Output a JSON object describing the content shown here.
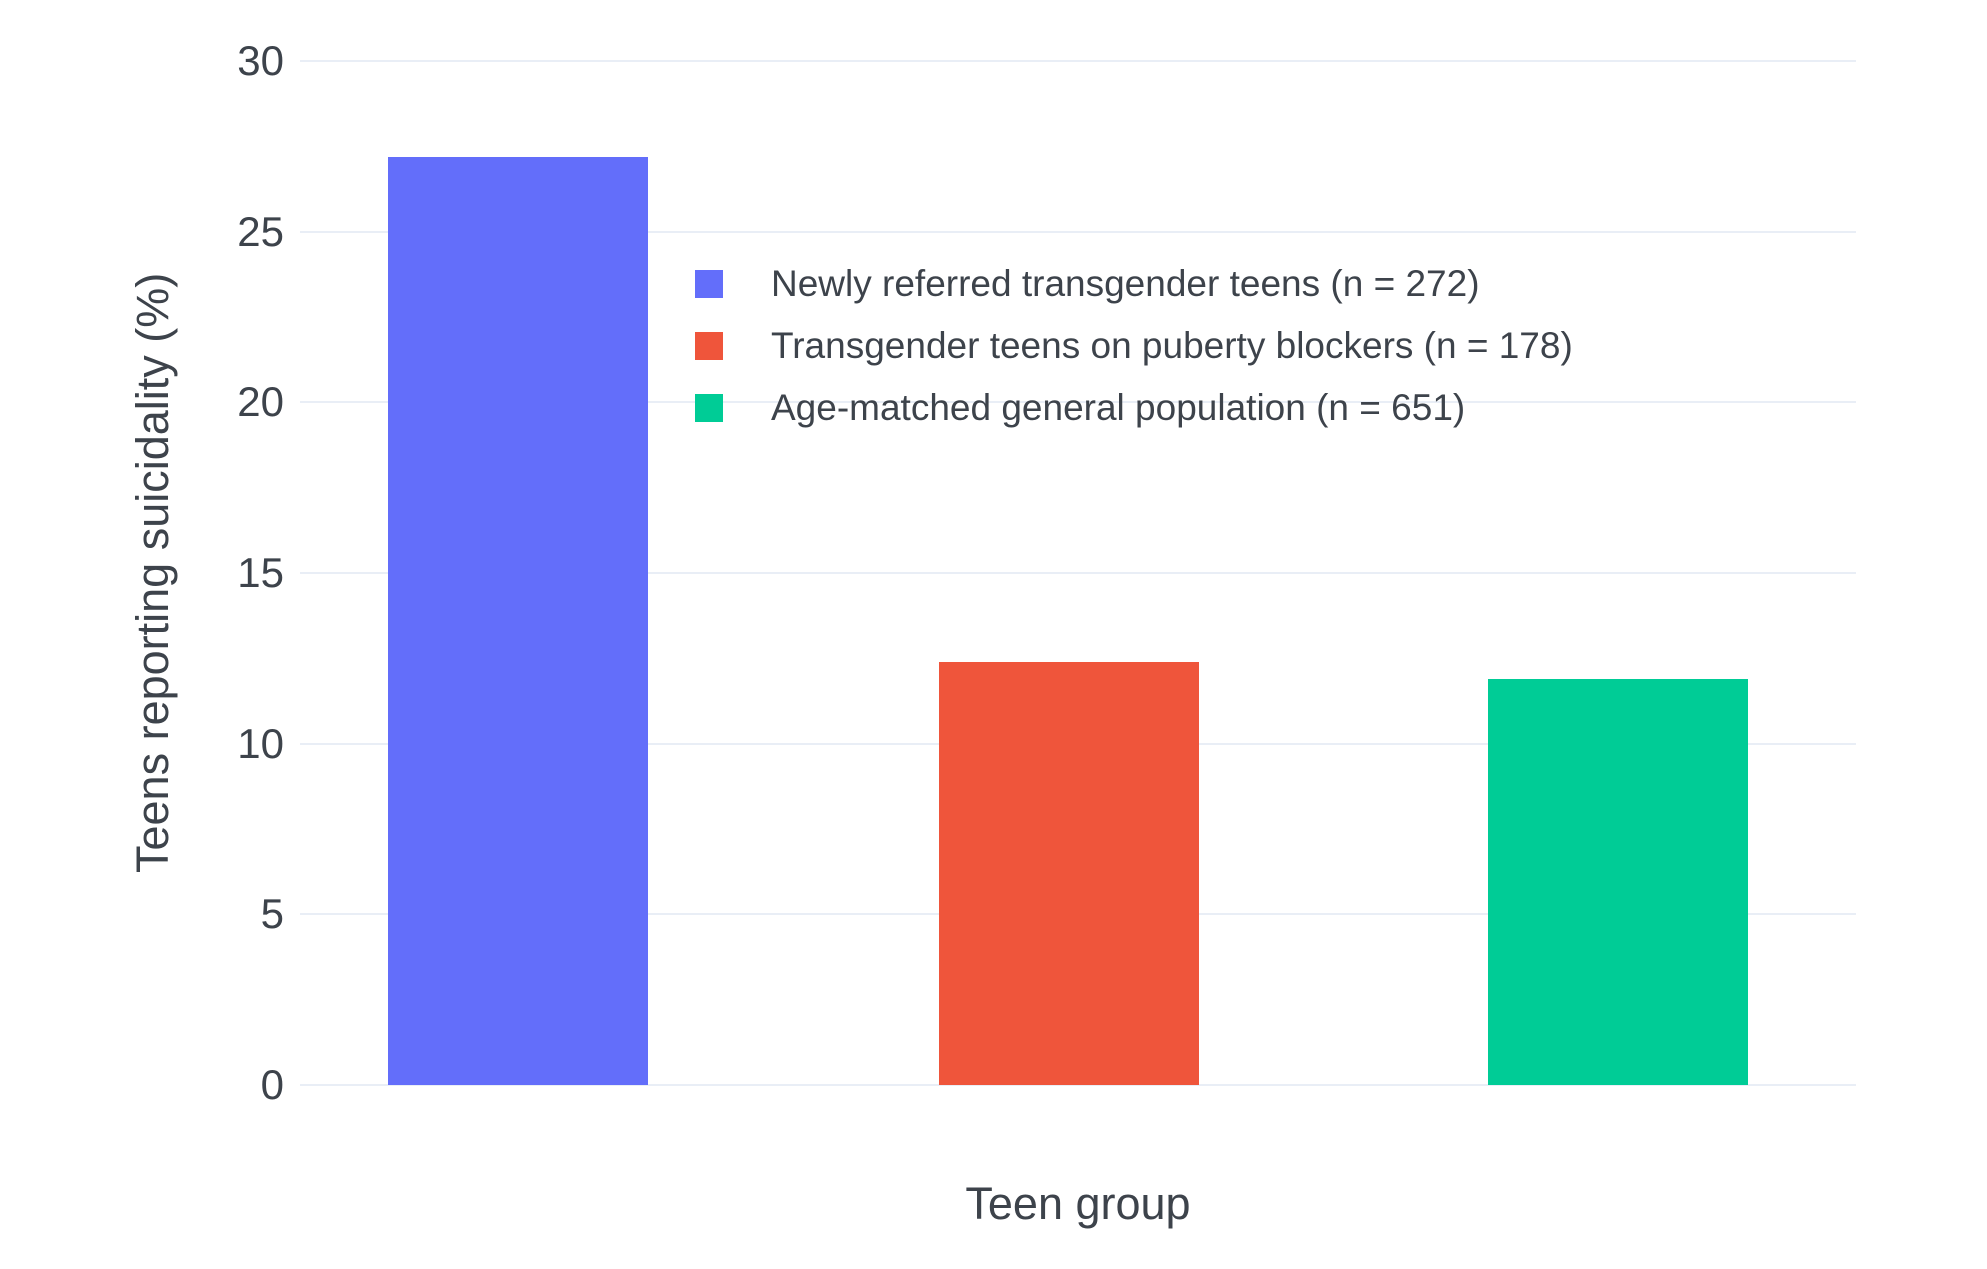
{
  "chart_data": {
    "type": "bar",
    "title": "",
    "xlabel": "Teen group",
    "ylabel": "Teens reporting suicidality (%)",
    "categories": [
      "Newly referred transgender teens (n = 272)",
      "Transgender teens on puberty blockers (n = 178)",
      "Age-matched general population (n = 651)"
    ],
    "values": [
      27.2,
      12.4,
      11.9
    ],
    "colors": [
      "#636efa",
      "#ef553b",
      "#00cc96"
    ],
    "ylim": [
      0,
      30
    ],
    "yticks": [
      0,
      5,
      10,
      15,
      20,
      25,
      30
    ],
    "grid": true,
    "gridcolor": "#e9eef6",
    "background": "#ffffff",
    "text_color": "#3d434b",
    "legend_position": "inside-top-center-right",
    "legend": [
      {
        "label": "Newly referred transgender teens (n = 272)",
        "color": "#636efa"
      },
      {
        "label": "Transgender teens on puberty blockers (n = 178)",
        "color": "#ef553b"
      },
      {
        "label": "Age-matched general population (n = 651)",
        "color": "#00cc96"
      }
    ],
    "layout_hints": {
      "bar_centers_pct": [
        14.0,
        49.4,
        84.7
      ],
      "bar_width_pct": 16.7
    }
  }
}
